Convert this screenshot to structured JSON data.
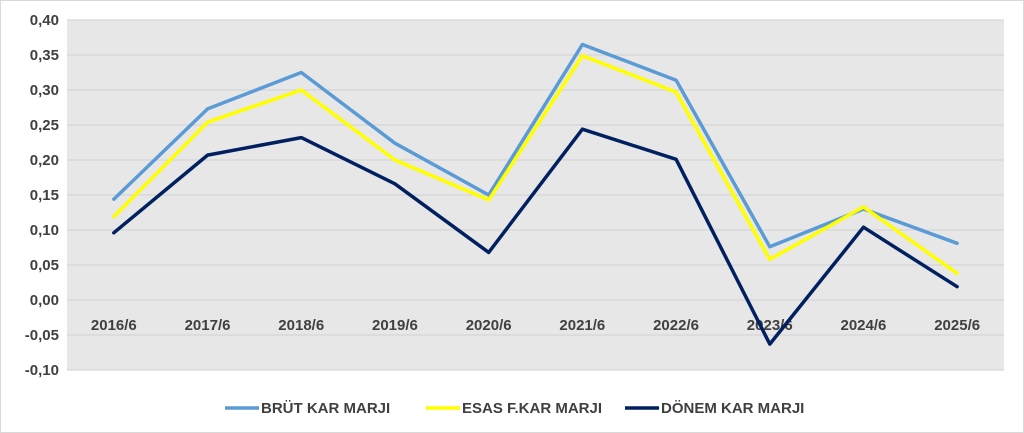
{
  "chart_data": {
    "type": "line",
    "categories": [
      "2016/6",
      "2017/6",
      "2018/6",
      "2019/6",
      "2020/6",
      "2021/6",
      "2022/6",
      "2023/6",
      "2024/6",
      "2025/6"
    ],
    "ylim": [
      -0.1,
      0.4
    ],
    "yticks": [
      "-0,10",
      "-0,05",
      "0,00",
      "0,05",
      "0,10",
      "0,15",
      "0,20",
      "0,25",
      "0,30",
      "0,35",
      "0,40"
    ],
    "ytick_values": [
      -0.1,
      -0.05,
      0.0,
      0.05,
      0.1,
      0.15,
      0.2,
      0.25,
      0.3,
      0.35,
      0.4
    ],
    "grid": true,
    "legend_position": "bottom",
    "series": [
      {
        "name": "BRÜT KAR MARJI",
        "color": "#5b9bd5",
        "values": [
          0.144,
          0.273,
          0.325,
          0.224,
          0.15,
          0.365,
          0.314,
          0.076,
          0.13,
          0.081
        ]
      },
      {
        "name": "ESAS F.KAR MARJI",
        "color": "#ffff00",
        "values": [
          0.119,
          0.254,
          0.3,
          0.2,
          0.143,
          0.349,
          0.297,
          0.058,
          0.133,
          0.038
        ]
      },
      {
        "name": "DÖNEM KAR MARJI",
        "color": "#002060",
        "values": [
          0.096,
          0.207,
          0.232,
          0.166,
          0.068,
          0.244,
          0.201,
          -0.063,
          0.104,
          0.019
        ]
      }
    ]
  }
}
